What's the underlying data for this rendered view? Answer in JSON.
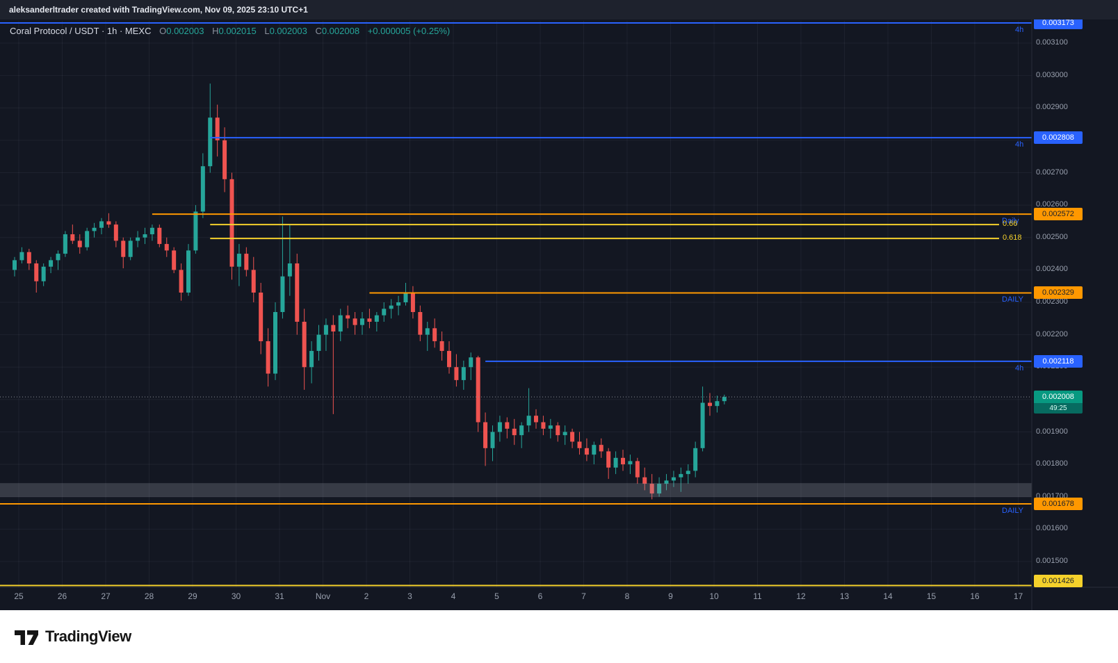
{
  "top_bar": {
    "attribution": "aleksanderltrader created with TradingView.com, Nov 09, 2025 23:10 UTC+1"
  },
  "legend": {
    "title": "Coral Protocol / USDT · 1h · MEXC",
    "o_label": "O",
    "o_value": "0.002003",
    "h_label": "H",
    "h_value": "0.002015",
    "l_label": "L",
    "l_value": "0.002003",
    "c_label": "C",
    "c_value": "0.002008",
    "change": "+0.000005 (+0.25%)"
  },
  "footer": {
    "brand": "TradingView"
  },
  "chart_data": {
    "type": "candlestick",
    "symbol": "Coral Protocol / USDT",
    "interval": "1h",
    "exchange": "MEXC",
    "ohlc_readout": {
      "open": 0.002003,
      "high": 0.002015,
      "low": 0.002003,
      "close": 0.002008,
      "change": 5e-06,
      "change_pct": 0.25
    },
    "colors": {
      "up": "#26a69a",
      "down": "#ef5350",
      "blue": "#2962ff",
      "orange": "#ff9800",
      "yellow": "#f5d12b",
      "teal": "#089981"
    },
    "price_axis": {
      "ticks": [
        "0.003100",
        "0.003000",
        "0.002900",
        "0.002800",
        "0.002700",
        "0.002600",
        "0.002500",
        "0.002400",
        "0.002300",
        "0.002200",
        "0.002100",
        "0.002000",
        "0.001900",
        "0.001800",
        "0.001700",
        "0.001600",
        "0.001500"
      ]
    },
    "time_axis": {
      "ticks": [
        "25",
        "26",
        "27",
        "28",
        "29",
        "30",
        "31",
        "Nov",
        "2",
        "3",
        "4",
        "5",
        "6",
        "7",
        "8",
        "9",
        "10",
        "11",
        "12",
        "13",
        "14",
        "15",
        "16",
        "17"
      ]
    },
    "levels": [
      {
        "label": "0.003173",
        "price": 0.003173,
        "color": "#2962ff",
        "text_color": "#ffffff",
        "tag": "4h",
        "start_index": null
      },
      {
        "label": "0.002808",
        "price": 0.002808,
        "color": "#2962ff",
        "text_color": "#ffffff",
        "tag": "4h",
        "start_index": 27
      },
      {
        "label": "0.002572",
        "price": 0.002572,
        "color": "#ff9800",
        "text_color": "#1b2029",
        "tag": "Daily",
        "start_index": 19
      },
      {
        "label": "0.002329",
        "price": 0.002329,
        "color": "#ff9800",
        "text_color": "#1b2029",
        "tag": "DAILY",
        "start_index": 49
      },
      {
        "label": "0.002118",
        "price": 0.002118,
        "color": "#2962ff",
        "text_color": "#ffffff",
        "tag": "4h",
        "start_index": 65
      },
      {
        "label": "0.001678",
        "price": 0.001678,
        "color": "#ff9800",
        "text_color": "#1b2029",
        "tag": "DAILY",
        "start_index": null
      },
      {
        "label": "0.001426",
        "price": 0.001426,
        "color": "#f5d12b",
        "text_color": "#1b2029",
        "tag": null,
        "start_index": null
      }
    ],
    "fib_levels": [
      {
        "label": "0.66",
        "price": 0.00254,
        "start_index": 27
      },
      {
        "label": "0.618",
        "price": 0.002497,
        "start_index": 27
      }
    ],
    "zone": {
      "top": 0.001742,
      "bottom": 0.001699
    },
    "current_price": {
      "label": "0.002008",
      "countdown": "49:25",
      "price": 0.002008
    },
    "candles": [
      [
        0.0024,
        0.00244,
        0.00238,
        0.00243
      ],
      [
        0.00243,
        0.00247,
        0.00242,
        0.002455
      ],
      [
        0.002455,
        0.002465,
        0.0024,
        0.00242
      ],
      [
        0.00242,
        0.00243,
        0.00233,
        0.002365
      ],
      [
        0.002365,
        0.00242,
        0.00235,
        0.00241
      ],
      [
        0.00241,
        0.00244,
        0.00239,
        0.00243
      ],
      [
        0.00243,
        0.00246,
        0.0024,
        0.00245
      ],
      [
        0.00245,
        0.00252,
        0.00244,
        0.00251
      ],
      [
        0.00251,
        0.00254,
        0.00248,
        0.00249
      ],
      [
        0.00249,
        0.00251,
        0.00245,
        0.00247
      ],
      [
        0.00247,
        0.00253,
        0.00246,
        0.00252
      ],
      [
        0.00252,
        0.002545,
        0.0025,
        0.00253
      ],
      [
        0.00253,
        0.00256,
        0.00251,
        0.00255
      ],
      [
        0.00255,
        0.002575,
        0.00253,
        0.00254
      ],
      [
        0.00254,
        0.00255,
        0.00247,
        0.00249
      ],
      [
        0.00249,
        0.0025,
        0.002405,
        0.00244
      ],
      [
        0.00244,
        0.0025,
        0.00243,
        0.00249
      ],
      [
        0.00249,
        0.00252,
        0.00247,
        0.0025
      ],
      [
        0.0025,
        0.00253,
        0.00248,
        0.00251
      ],
      [
        0.00251,
        0.00254,
        0.00249,
        0.00253
      ],
      [
        0.00253,
        0.00254,
        0.00247,
        0.00248
      ],
      [
        0.00248,
        0.0025,
        0.00244,
        0.00246
      ],
      [
        0.00246,
        0.00247,
        0.00239,
        0.0024
      ],
      [
        0.0024,
        0.00242,
        0.002305,
        0.00233
      ],
      [
        0.00233,
        0.00248,
        0.00232,
        0.00246
      ],
      [
        0.00246,
        0.0026,
        0.00245,
        0.00258
      ],
      [
        0.00258,
        0.00276,
        0.00256,
        0.00272
      ],
      [
        0.00272,
        0.002975,
        0.0027,
        0.00287
      ],
      [
        0.00287,
        0.00291,
        0.00275,
        0.0028
      ],
      [
        0.0028,
        0.00284,
        0.00264,
        0.00268
      ],
      [
        0.00268,
        0.0027,
        0.00237,
        0.00241
      ],
      [
        0.00241,
        0.00248,
        0.00235,
        0.00245
      ],
      [
        0.00245,
        0.00247,
        0.00238,
        0.0024
      ],
      [
        0.0024,
        0.00244,
        0.0023,
        0.00233
      ],
      [
        0.00233,
        0.00236,
        0.00214,
        0.00218
      ],
      [
        0.00218,
        0.00222,
        0.00204,
        0.00208
      ],
      [
        0.00208,
        0.0023,
        0.00206,
        0.00227
      ],
      [
        0.00227,
        0.002565,
        0.00225,
        0.00238
      ],
      [
        0.00238,
        0.00254,
        0.00232,
        0.00242
      ],
      [
        0.00242,
        0.00245,
        0.0022,
        0.00224
      ],
      [
        0.00224,
        0.00228,
        0.00203,
        0.0021
      ],
      [
        0.0021,
        0.00218,
        0.00205,
        0.00215
      ],
      [
        0.00215,
        0.00223,
        0.00212,
        0.0022
      ],
      [
        0.0022,
        0.00225,
        0.00215,
        0.00223
      ],
      [
        0.00223,
        0.00226,
        0.001955,
        0.00221
      ],
      [
        0.00221,
        0.00228,
        0.00218,
        0.00226
      ],
      [
        0.00226,
        0.00229,
        0.00222,
        0.00225
      ],
      [
        0.00225,
        0.00227,
        0.0022,
        0.00223
      ],
      [
        0.00223,
        0.00227,
        0.0022,
        0.00225
      ],
      [
        0.00225,
        0.00228,
        0.00222,
        0.00224
      ],
      [
        0.00224,
        0.00227,
        0.00221,
        0.00226
      ],
      [
        0.00226,
        0.0023,
        0.00224,
        0.00228
      ],
      [
        0.00228,
        0.00231,
        0.00225,
        0.00229
      ],
      [
        0.00229,
        0.00232,
        0.00226,
        0.0023
      ],
      [
        0.0023,
        0.00236,
        0.00229,
        0.00233
      ],
      [
        0.00233,
        0.00235,
        0.00225,
        0.00227
      ],
      [
        0.00227,
        0.00229,
        0.00218,
        0.0022
      ],
      [
        0.0022,
        0.00224,
        0.00215,
        0.00222
      ],
      [
        0.00222,
        0.00225,
        0.00216,
        0.00218
      ],
      [
        0.00218,
        0.00221,
        0.00212,
        0.00215
      ],
      [
        0.00215,
        0.00218,
        0.00208,
        0.0021
      ],
      [
        0.0021,
        0.00214,
        0.00204,
        0.00206
      ],
      [
        0.00206,
        0.00212,
        0.00203,
        0.0021
      ],
      [
        0.0021,
        0.002145,
        0.00206,
        0.00213
      ],
      [
        0.00213,
        0.002135,
        0.0019,
        0.00193
      ],
      [
        0.00193,
        0.00196,
        0.001795,
        0.00185
      ],
      [
        0.00185,
        0.00192,
        0.00181,
        0.0019
      ],
      [
        0.0019,
        0.00195,
        0.00187,
        0.00193
      ],
      [
        0.00193,
        0.001945,
        0.00188,
        0.00191
      ],
      [
        0.00191,
        0.00194,
        0.00186,
        0.00189
      ],
      [
        0.00189,
        0.00193,
        0.00185,
        0.00192
      ],
      [
        0.00192,
        0.002035,
        0.0019,
        0.00195
      ],
      [
        0.00195,
        0.00197,
        0.00191,
        0.00193
      ],
      [
        0.00193,
        0.00195,
        0.00189,
        0.00191
      ],
      [
        0.00191,
        0.00194,
        0.00188,
        0.00192
      ],
      [
        0.00192,
        0.00193,
        0.00187,
        0.00189
      ],
      [
        0.00189,
        0.00192,
        0.00186,
        0.0019
      ],
      [
        0.0019,
        0.00191,
        0.00185,
        0.00187
      ],
      [
        0.00187,
        0.0019,
        0.00183,
        0.00185
      ],
      [
        0.00185,
        0.00188,
        0.00181,
        0.00183
      ],
      [
        0.00183,
        0.00187,
        0.0018,
        0.00186
      ],
      [
        0.00186,
        0.00188,
        0.00182,
        0.00184
      ],
      [
        0.00184,
        0.00185,
        0.001755,
        0.00179
      ],
      [
        0.00179,
        0.00184,
        0.00177,
        0.00182
      ],
      [
        0.00182,
        0.001845,
        0.00178,
        0.0018
      ],
      [
        0.0018,
        0.00183,
        0.00177,
        0.00181
      ],
      [
        0.00181,
        0.00182,
        0.00174,
        0.00176
      ],
      [
        0.00176,
        0.00179,
        0.00172,
        0.00174
      ],
      [
        0.00174,
        0.00177,
        0.001692,
        0.00171
      ],
      [
        0.00171,
        0.00176,
        0.0017,
        0.00174
      ],
      [
        0.00174,
        0.00177,
        0.00172,
        0.00175
      ],
      [
        0.00175,
        0.00178,
        0.00173,
        0.00176
      ],
      [
        0.00176,
        0.00179,
        0.001715,
        0.00177
      ],
      [
        0.00177,
        0.0018,
        0.00174,
        0.00178
      ],
      [
        0.00178,
        0.00187,
        0.00176,
        0.00185
      ],
      [
        0.00185,
        0.00204,
        0.00184,
        0.00199
      ],
      [
        0.00199,
        0.00202,
        0.00195,
        0.00198
      ],
      [
        0.00198,
        0.002012,
        0.00196,
        0.001995
      ],
      [
        0.001995,
        0.002015,
        0.001985,
        0.002008
      ]
    ]
  }
}
